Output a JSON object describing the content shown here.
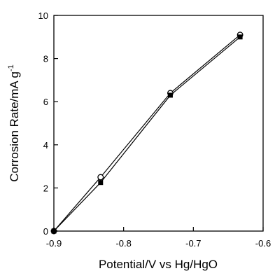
{
  "chart_data": {
    "type": "line",
    "title": "",
    "xlabel": "Potential/V vs  Hg/HgO",
    "ylabel_main": "Corrosion Rate/mA g",
    "ylabel_sup": "-1",
    "xlim": [
      -0.9,
      -0.6
    ],
    "ylim": [
      0,
      10
    ],
    "xticks": [
      -0.9,
      -0.8,
      -0.7,
      -0.6
    ],
    "xtick_labels": [
      "-0.9",
      "-0.8",
      "-0.7",
      "-0.6"
    ],
    "yticks": [
      0,
      2,
      4,
      6,
      8,
      10
    ],
    "ytick_labels": [
      "0",
      "2",
      "4",
      "6",
      "8",
      "10"
    ],
    "grid": false,
    "legend": "none",
    "series": [
      {
        "marker": "open-circle",
        "color": "#000000",
        "x": [
          -0.9,
          -0.833,
          -0.733,
          -0.633
        ],
        "y": [
          0,
          2.5,
          6.4,
          9.1
        ]
      },
      {
        "marker": "filled-square",
        "color": "#000000",
        "x": [
          -0.9,
          -0.833,
          -0.733,
          -0.633
        ],
        "y": [
          0,
          2.25,
          6.3,
          9.0
        ]
      }
    ]
  }
}
